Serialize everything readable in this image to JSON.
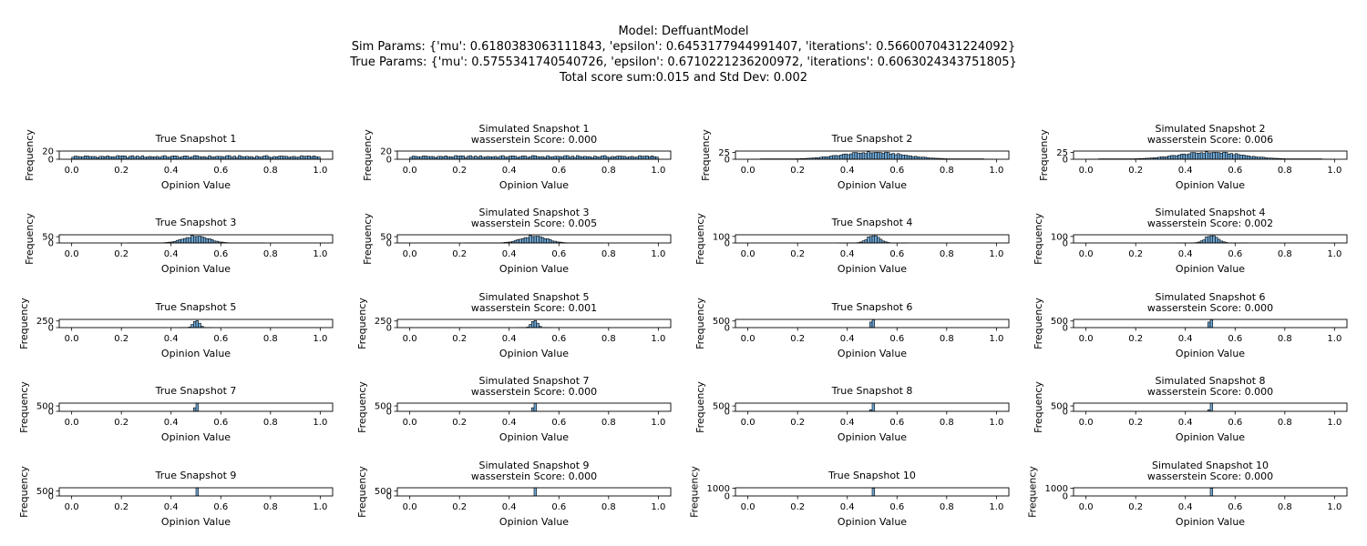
{
  "header": {
    "model": "Model: DeffuantModel",
    "sim_params": "Sim Params: {'mu': 0.6180383063111843, 'epsilon': 0.6453177944991407, 'iterations': 0.5660070431224092}",
    "true_params": "True Params: {'mu': 0.5755341740540726, 'epsilon': 0.6710221236200972, 'iterations': 0.6063024343751805}",
    "score": "Total score sum:0.015 and Std Dev: 0.002"
  },
  "colors": {
    "bar_fill": "#6fa8d6",
    "bar_edge": "#000000",
    "axis": "#000000"
  },
  "chart_data": [
    {
      "type": "bar",
      "title": "True Snapshot 1",
      "subtitle": "",
      "xlabel": "Opinion Value",
      "ylabel": "Frequency",
      "xlim": [
        -0.05,
        1.05
      ],
      "xticks": [
        "0.0",
        "0.2",
        "0.4",
        "0.6",
        "0.8",
        "1.0"
      ],
      "ylim": [
        0,
        20
      ],
      "yticks": [
        "20",
        "0"
      ],
      "distribution": "uniform",
      "peak": 9
    },
    {
      "type": "bar",
      "title": "Simulated Snapshot 1",
      "subtitle": "wasserstein Score: 0.000",
      "xlabel": "Opinion Value",
      "ylabel": "Frequency",
      "xlim": [
        -0.05,
        1.05
      ],
      "xticks": [
        "0.0",
        "0.2",
        "0.4",
        "0.6",
        "0.8",
        "1.0"
      ],
      "ylim": [
        0,
        20
      ],
      "yticks": [
        "20",
        "0"
      ],
      "distribution": "uniform",
      "peak": 9
    },
    {
      "type": "bar",
      "title": "True Snapshot 2",
      "subtitle": "",
      "xlabel": "Opinion Value",
      "ylabel": "Frequency",
      "xlim": [
        -0.05,
        1.05
      ],
      "xticks": [
        "0.0",
        "0.2",
        "0.4",
        "0.6",
        "0.8",
        "1.0"
      ],
      "ylim": [
        0,
        30
      ],
      "yticks": [
        "25",
        "0"
      ],
      "distribution": "broad",
      "center": 0.5,
      "spread": 0.13,
      "peak": 25
    },
    {
      "type": "bar",
      "title": "Simulated Snapshot 2",
      "subtitle": "wasserstein Score: 0.006",
      "xlabel": "Opinion Value",
      "ylabel": "Frequency",
      "xlim": [
        -0.05,
        1.05
      ],
      "xticks": [
        "0.0",
        "0.2",
        "0.4",
        "0.6",
        "0.8",
        "1.0"
      ],
      "ylim": [
        0,
        30
      ],
      "yticks": [
        "25",
        "0"
      ],
      "distribution": "broad",
      "center": 0.5,
      "spread": 0.13,
      "peak": 25
    },
    {
      "type": "bar",
      "title": "True Snapshot 3",
      "subtitle": "",
      "xlabel": "Opinion Value",
      "ylabel": "Frequency",
      "xlim": [
        -0.05,
        1.05
      ],
      "xticks": [
        "0.0",
        "0.2",
        "0.4",
        "0.6",
        "0.8",
        "1.0"
      ],
      "ylim": [
        0,
        65
      ],
      "yticks": [
        "50",
        "0"
      ],
      "distribution": "normal",
      "center": 0.5,
      "spread": 0.05,
      "peak": 55
    },
    {
      "type": "bar",
      "title": "Simulated Snapshot 3",
      "subtitle": "wasserstein Score: 0.005",
      "xlabel": "Opinion Value",
      "ylabel": "Frequency",
      "xlim": [
        -0.05,
        1.05
      ],
      "xticks": [
        "0.0",
        "0.2",
        "0.4",
        "0.6",
        "0.8",
        "1.0"
      ],
      "ylim": [
        0,
        65
      ],
      "yticks": [
        "50",
        "0"
      ],
      "distribution": "normal",
      "center": 0.5,
      "spread": 0.05,
      "peak": 55
    },
    {
      "type": "bar",
      "title": "True Snapshot 4",
      "subtitle": "",
      "xlabel": "Opinion Value",
      "ylabel": "Frequency",
      "xlim": [
        -0.05,
        1.05
      ],
      "xticks": [
        "0.0",
        "0.2",
        "0.4",
        "0.6",
        "0.8",
        "1.0"
      ],
      "ylim": [
        0,
        125
      ],
      "yticks": [
        "100",
        "0"
      ],
      "distribution": "normal",
      "center": 0.505,
      "spread": 0.025,
      "peak": 115
    },
    {
      "type": "bar",
      "title": "Simulated Snapshot 4",
      "subtitle": "wasserstein Score: 0.002",
      "xlabel": "Opinion Value",
      "ylabel": "Frequency",
      "xlim": [
        -0.05,
        1.05
      ],
      "xticks": [
        "0.0",
        "0.2",
        "0.4",
        "0.6",
        "0.8",
        "1.0"
      ],
      "ylim": [
        0,
        125
      ],
      "yticks": [
        "100",
        "0"
      ],
      "distribution": "normal",
      "center": 0.505,
      "spread": 0.025,
      "peak": 115
    },
    {
      "type": "bar",
      "title": "True Snapshot 5",
      "subtitle": "",
      "xlabel": "Opinion Value",
      "ylabel": "Frequency",
      "xlim": [
        -0.05,
        1.05
      ],
      "xticks": [
        "0.0",
        "0.2",
        "0.4",
        "0.6",
        "0.8",
        "1.0"
      ],
      "ylim": [
        0,
        310
      ],
      "yticks": [
        "250",
        "0"
      ],
      "distribution": "normal",
      "center": 0.502,
      "spread": 0.012,
      "peak": 290
    },
    {
      "type": "bar",
      "title": "Simulated Snapshot 5",
      "subtitle": "wasserstein Score: 0.001",
      "xlabel": "Opinion Value",
      "ylabel": "Frequency",
      "xlim": [
        -0.05,
        1.05
      ],
      "xticks": [
        "0.0",
        "0.2",
        "0.4",
        "0.6",
        "0.8",
        "1.0"
      ],
      "ylim": [
        0,
        310
      ],
      "yticks": [
        "250",
        "0"
      ],
      "distribution": "normal",
      "center": 0.502,
      "spread": 0.012,
      "peak": 290
    },
    {
      "type": "bar",
      "title": "True Snapshot 6",
      "subtitle": "",
      "xlabel": "Opinion Value",
      "ylabel": "Frequency",
      "xlim": [
        -0.05,
        1.05
      ],
      "xticks": [
        "0.0",
        "0.2",
        "0.4",
        "0.6",
        "0.8",
        "1.0"
      ],
      "ylim": [
        0,
        620
      ],
      "yticks": [
        "500",
        "0"
      ],
      "distribution": "spikes",
      "spikes": [
        [
          0.495,
          420
        ],
        [
          0.505,
          590
        ]
      ]
    },
    {
      "type": "bar",
      "title": "Simulated Snapshot 6",
      "subtitle": "wasserstein Score: 0.000",
      "xlabel": "Opinion Value",
      "ylabel": "Frequency",
      "xlim": [
        -0.05,
        1.05
      ],
      "xticks": [
        "0.0",
        "0.2",
        "0.4",
        "0.6",
        "0.8",
        "1.0"
      ],
      "ylim": [
        0,
        620
      ],
      "yticks": [
        "500",
        "0"
      ],
      "distribution": "spikes",
      "spikes": [
        [
          0.495,
          420
        ],
        [
          0.505,
          590
        ]
      ]
    },
    {
      "type": "bar",
      "title": "True Snapshot 7",
      "subtitle": "",
      "xlabel": "Opinion Value",
      "ylabel": "Frequency",
      "xlim": [
        -0.05,
        1.05
      ],
      "xticks": [
        "0.0",
        "0.2",
        "0.4",
        "0.6",
        "0.8",
        "1.0"
      ],
      "ylim": [
        0,
        760
      ],
      "yticks": [
        "500",
        "0"
      ],
      "distribution": "spikes",
      "spikes": [
        [
          0.495,
          330
        ],
        [
          0.505,
          760
        ]
      ]
    },
    {
      "type": "bar",
      "title": "Simulated Snapshot 7",
      "subtitle": "wasserstein Score: 0.000",
      "xlabel": "Opinion Value",
      "ylabel": "Frequency",
      "xlim": [
        -0.05,
        1.05
      ],
      "xticks": [
        "0.0",
        "0.2",
        "0.4",
        "0.6",
        "0.8",
        "1.0"
      ],
      "ylim": [
        0,
        760
      ],
      "yticks": [
        "500",
        "0"
      ],
      "distribution": "spikes",
      "spikes": [
        [
          0.495,
          330
        ],
        [
          0.505,
          760
        ]
      ]
    },
    {
      "type": "bar",
      "title": "True Snapshot 8",
      "subtitle": "",
      "xlabel": "Opinion Value",
      "ylabel": "Frequency",
      "xlim": [
        -0.05,
        1.05
      ],
      "xticks": [
        "0.0",
        "0.2",
        "0.4",
        "0.6",
        "0.8",
        "1.0"
      ],
      "ylim": [
        0,
        760
      ],
      "yticks": [
        "500",
        "0"
      ],
      "distribution": "spikes",
      "spikes": [
        [
          0.495,
          150
        ],
        [
          0.505,
          760
        ]
      ]
    },
    {
      "type": "bar",
      "title": "Simulated Snapshot 8",
      "subtitle": "wasserstein Score: 0.000",
      "xlabel": "Opinion Value",
      "ylabel": "Frequency",
      "xlim": [
        -0.05,
        1.05
      ],
      "xticks": [
        "0.0",
        "0.2",
        "0.4",
        "0.6",
        "0.8",
        "1.0"
      ],
      "ylim": [
        0,
        760
      ],
      "yticks": [
        "500",
        "0"
      ],
      "distribution": "spikes",
      "spikes": [
        [
          0.495,
          150
        ],
        [
          0.505,
          760
        ]
      ]
    },
    {
      "type": "bar",
      "title": "True Snapshot 9",
      "subtitle": "",
      "xlabel": "Opinion Value",
      "ylabel": "Frequency",
      "xlim": [
        -0.05,
        1.05
      ],
      "xticks": [
        "0.0",
        "0.2",
        "0.4",
        "0.6",
        "0.8",
        "1.0"
      ],
      "ylim": [
        0,
        820
      ],
      "yticks": [
        "500",
        "0"
      ],
      "distribution": "spikes",
      "spikes": [
        [
          0.505,
          820
        ]
      ]
    },
    {
      "type": "bar",
      "title": "Simulated Snapshot 9",
      "subtitle": "wasserstein Score: 0.000",
      "xlabel": "Opinion Value",
      "ylabel": "Frequency",
      "xlim": [
        -0.05,
        1.05
      ],
      "xticks": [
        "0.0",
        "0.2",
        "0.4",
        "0.6",
        "0.8",
        "1.0"
      ],
      "ylim": [
        0,
        820
      ],
      "yticks": [
        "500",
        "0"
      ],
      "distribution": "spikes",
      "spikes": [
        [
          0.505,
          820
        ]
      ]
    },
    {
      "type": "bar",
      "title": "True Snapshot 10",
      "subtitle": "",
      "xlabel": "Opinion Value",
      "ylabel": "Frequency",
      "xlim": [
        -0.05,
        1.05
      ],
      "xticks": [
        "0.0",
        "0.2",
        "0.4",
        "0.6",
        "0.8",
        "1.0"
      ],
      "ylim": [
        0,
        1050
      ],
      "yticks": [
        "1000",
        "0"
      ],
      "distribution": "spikes",
      "spikes": [
        [
          0.505,
          1000
        ]
      ]
    },
    {
      "type": "bar",
      "title": "Simulated Snapshot 10",
      "subtitle": "wasserstein Score: 0.000",
      "xlabel": "Opinion Value",
      "ylabel": "Frequency",
      "xlim": [
        -0.05,
        1.05
      ],
      "xticks": [
        "0.0",
        "0.2",
        "0.4",
        "0.6",
        "0.8",
        "1.0"
      ],
      "ylim": [
        0,
        1050
      ],
      "yticks": [
        "1000",
        "0"
      ],
      "distribution": "spikes",
      "spikes": [
        [
          0.505,
          1000
        ]
      ]
    }
  ]
}
